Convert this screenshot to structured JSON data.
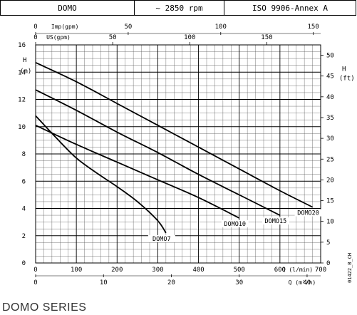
{
  "header": {
    "model": "DOMO",
    "speed": "~ 2850 rpm",
    "standard": "ISO 9906-Annex A"
  },
  "footer": {
    "series_title": "DOMO SERIES"
  },
  "code": "01422_B_CH",
  "chart_data": {
    "type": "line",
    "title": "",
    "xlabel": "Q (l/min)",
    "ylabel": "H (m)",
    "xlim": [
      0,
      700
    ],
    "ylim": [
      0,
      16
    ],
    "x_ticks": [
      0,
      100,
      200,
      300,
      400,
      500,
      600,
      700
    ],
    "y_ticks": [
      0,
      2,
      4,
      6,
      8,
      10,
      12,
      14,
      16
    ],
    "grid": true,
    "secondary_axes": {
      "top_imp": {
        "label": "Imp(gpm)",
        "ticks": [
          0,
          50,
          100,
          150
        ]
      },
      "top_us": {
        "label": "US(gpm)",
        "ticks": [
          0,
          50,
          100,
          150
        ]
      },
      "bottom_m3h": {
        "label": "Q (m³/h)",
        "ticks": [
          0,
          10,
          20,
          30,
          40
        ]
      },
      "right_ft": {
        "label": "H (ft)",
        "ticks": [
          0,
          5,
          10,
          15,
          20,
          25,
          30,
          35,
          40,
          45,
          50
        ]
      }
    },
    "series": [
      {
        "name": "DOMO7",
        "x": [
          0,
          50,
          100,
          150,
          200,
          250,
          300,
          320
        ],
        "y": [
          10.8,
          9.2,
          7.7,
          6.6,
          5.6,
          4.5,
          3.1,
          2.2
        ]
      },
      {
        "name": "DOMO10",
        "x": [
          0,
          100,
          200,
          300,
          400,
          500
        ],
        "y": [
          10.1,
          8.7,
          7.4,
          6.1,
          4.8,
          3.3
        ]
      },
      {
        "name": "DOMO15",
        "x": [
          0,
          100,
          200,
          300,
          400,
          500,
          600
        ],
        "y": [
          12.7,
          11.2,
          9.6,
          8.1,
          6.5,
          5.0,
          3.5
        ]
      },
      {
        "name": "DOMO20",
        "x": [
          0,
          100,
          200,
          300,
          400,
          500,
          600,
          680
        ],
        "y": [
          14.7,
          13.3,
          11.7,
          10.1,
          8.5,
          6.9,
          5.3,
          4.1
        ]
      }
    ]
  }
}
